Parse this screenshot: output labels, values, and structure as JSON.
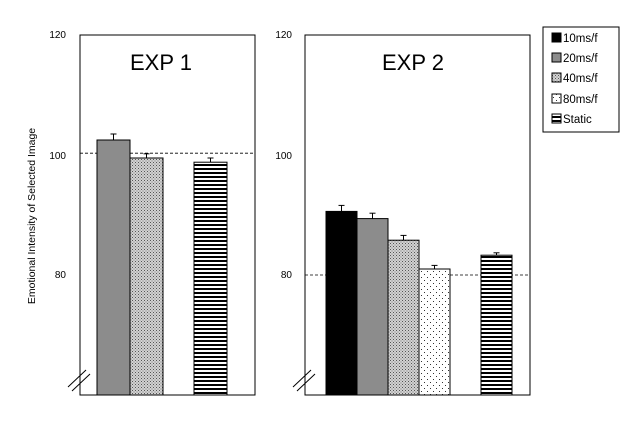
{
  "chart_data": [
    {
      "type": "bar",
      "title": "EXP 1",
      "ylabel": "Emotional Intensity of Selected Image",
      "ylim": [
        60,
        120
      ],
      "yticks": [
        80,
        100,
        120
      ],
      "reference_line": 100.3,
      "axis_break": true,
      "series": [
        {
          "name": "20ms/f",
          "value": 102.5,
          "error": 1.0
        },
        {
          "name": "40ms/f",
          "value": 99.5,
          "error": 0.7
        },
        {
          "name": "Static",
          "value": 98.8,
          "error": 0.7
        }
      ]
    },
    {
      "type": "bar",
      "title": "EXP 2",
      "ylabel": "",
      "ylim": [
        60,
        120
      ],
      "yticks": [
        80,
        100,
        120
      ],
      "reference_line": 80.0,
      "axis_break": true,
      "series": [
        {
          "name": "10ms/f",
          "value": 90.6,
          "error": 1.0
        },
        {
          "name": "20ms/f",
          "value": 89.4,
          "error": 0.9
        },
        {
          "name": "40ms/f",
          "value": 85.8,
          "error": 0.8
        },
        {
          "name": "80ms/f",
          "value": 81.0,
          "error": 0.6
        },
        {
          "name": "Static",
          "value": 83.3,
          "error": 0.4
        }
      ]
    }
  ],
  "legend": {
    "position": "top-right",
    "items": [
      {
        "label": "10ms/f",
        "fill": "solid-black"
      },
      {
        "label": "20ms/f",
        "fill": "solid-gray"
      },
      {
        "label": "40ms/f",
        "fill": "light-stipple"
      },
      {
        "label": "80ms/f",
        "fill": "white-dots"
      },
      {
        "label": "Static",
        "fill": "horizontal-stripes"
      }
    ]
  },
  "colors": {
    "axis": "#000000",
    "black_fill": "#000000",
    "gray_fill": "#8c8c8c",
    "stipple_fill": "#cfcfcf"
  }
}
